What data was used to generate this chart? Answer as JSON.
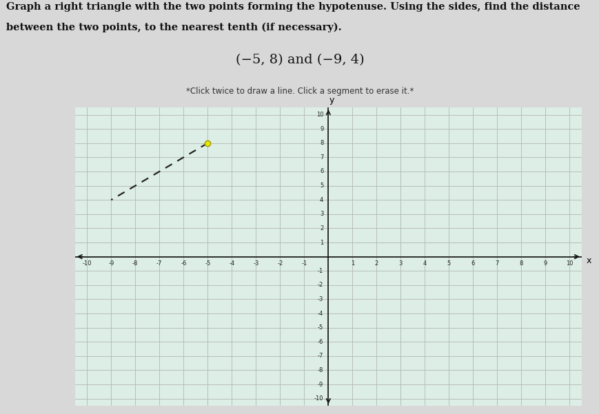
{
  "title_line1": "Graph a right triangle with the two points forming the hypotenuse. Using the sides, find the distance",
  "title_line2": "between the two points, to the nearest tenth (if necessary).",
  "points_label": "(−5, 8) and (−9, 4)",
  "subtitle": "*Click twice to draw a line. Click a segment to erase it.*",
  "point1": [
    -5,
    8
  ],
  "point2": [
    -9,
    4
  ],
  "grid_color": "#b0b8b0",
  "axis_color": "#111111",
  "hyp_color": "#222222",
  "circle_color": "#e8e800",
  "circle_edge": "#999900",
  "background_color": "#d8d8d8",
  "plot_bg": "#ddeee6",
  "xlim": [
    -10.5,
    10.5
  ],
  "ylim": [
    -10.5,
    10.5
  ]
}
